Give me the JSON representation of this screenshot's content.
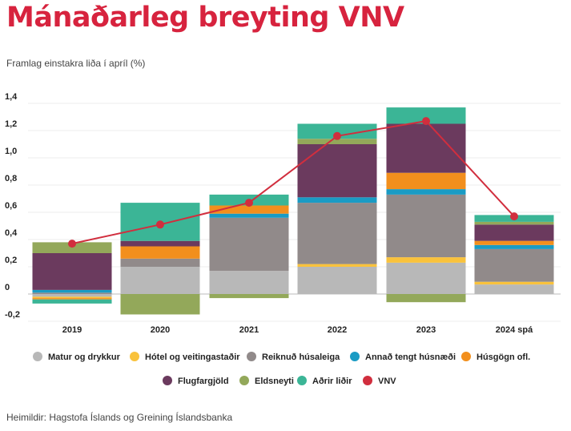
{
  "title": "Mánaðarleg breyting VNV",
  "subtitle": "Framlag einstakra liða í apríl (%)",
  "source": "Heimildir: Hagstofa Íslands og Greining Íslandsbanka",
  "colors": {
    "Matur og drykkur": "#b8b8b8",
    "Hótel og veitingastaðir": "#f9c23c",
    "Reiknuð húsaleiga": "#918a8a",
    "Annað tengt húsnæði": "#1a9bc4",
    "Húsgögn ofl.": "#f28f1d",
    "Flugfargjöld": "#6b3a5e",
    "Eldsneyti": "#93a85a",
    "Aðrir liðir": "#3bb596",
    "VNV": "#d12e3e"
  },
  "chart_data": {
    "type": "bar",
    "stacked": true,
    "categories": [
      "2019",
      "2020",
      "2021",
      "2022",
      "2023",
      "2024 spá"
    ],
    "ylim": [
      -0.2,
      1.4
    ],
    "yticks": [
      "1,4",
      "1,2",
      "1,0",
      "0,8",
      "0,6",
      "0,4",
      "0,2",
      "0",
      "-0,2"
    ],
    "ytick_values": [
      1.4,
      1.2,
      1.0,
      0.8,
      0.6,
      0.4,
      0.2,
      0,
      -0.2
    ],
    "grid": true,
    "legend_position": "bottom",
    "series": [
      {
        "name": "Matur og drykkur",
        "values": [
          -0.02,
          0.2,
          0.17,
          0.2,
          0.23,
          0.07
        ]
      },
      {
        "name": "Hótel og veitingastaðir",
        "values": [
          -0.01,
          0.0,
          0.0,
          0.02,
          0.04,
          0.02
        ]
      },
      {
        "name": "Reiknuð húsaleiga",
        "values": [
          0.01,
          0.06,
          0.39,
          0.45,
          0.46,
          0.24
        ]
      },
      {
        "name": "Annað tengt húsnæði",
        "values": [
          0.02,
          0.0,
          0.03,
          0.04,
          0.04,
          0.03
        ]
      },
      {
        "name": "Húsgögn ofl.",
        "values": [
          -0.01,
          0.09,
          0.06,
          0.0,
          0.12,
          0.03
        ]
      },
      {
        "name": "Flugfargjöld",
        "values": [
          0.27,
          0.04,
          0.0,
          0.39,
          0.36,
          0.12
        ]
      },
      {
        "name": "Eldsneyti",
        "values": [
          0.08,
          -0.15,
          -0.03,
          0.04,
          -0.06,
          0.02
        ]
      },
      {
        "name": "Aðrir liðir",
        "values": [
          -0.03,
          0.28,
          0.08,
          0.11,
          0.12,
          0.05
        ]
      }
    ],
    "line": {
      "name": "VNV",
      "values": [
        0.37,
        0.51,
        0.67,
        1.16,
        1.27,
        0.57
      ]
    }
  }
}
